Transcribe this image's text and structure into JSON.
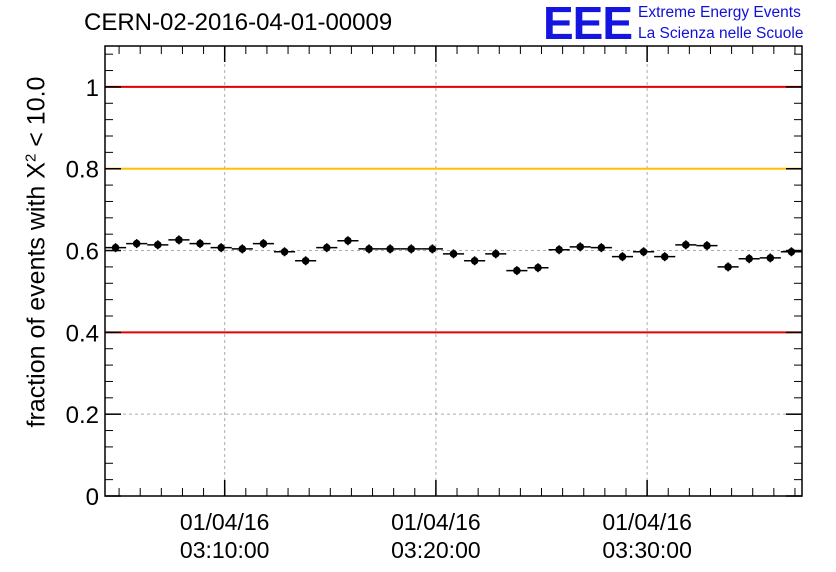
{
  "header": {
    "title": "CERN-02-2016-04-01-00009"
  },
  "logo": {
    "mark": "EEE",
    "line1": "Extreme Energy Events",
    "line2": "La Scienza nelle Scuole",
    "color": "#1515e0"
  },
  "chart_data": {
    "type": "scatter",
    "title": "CERN-02-2016-04-01-00009",
    "ylabel": {
      "prefix": "fraction of events with ",
      "symbol": "X",
      "exponent": "2",
      "suffix": " < 10.0"
    },
    "ylim": [
      0,
      1.1
    ],
    "xlim": [
      "03:04:20",
      "03:37:20"
    ],
    "yticks": [
      "0",
      "0.2",
      "0.4",
      "0.6",
      "0.8",
      "1"
    ],
    "xticks": [
      {
        "time": "03:10:00",
        "date": "01/04/16"
      },
      {
        "time": "03:20:00",
        "date": "01/04/16"
      },
      {
        "time": "03:30:00",
        "date": "01/04/16"
      }
    ],
    "grid": true,
    "reference_lines": [
      {
        "y": 1.0,
        "color": "#e00000"
      },
      {
        "y": 0.8,
        "color": "#ffc000"
      },
      {
        "y": 0.4,
        "color": "#e00000"
      }
    ],
    "bin_width_minutes": 1,
    "series": [
      {
        "x": [
          "03:04:50",
          "03:05:50",
          "03:06:50",
          "03:07:50",
          "03:08:50",
          "03:09:50",
          "03:10:50",
          "03:11:50",
          "03:12:50",
          "03:13:50",
          "03:14:50",
          "03:15:50",
          "03:16:50",
          "03:17:50",
          "03:18:50",
          "03:19:50",
          "03:20:50",
          "03:21:50",
          "03:22:50",
          "03:23:50",
          "03:24:50",
          "03:25:50",
          "03:26:50",
          "03:27:50",
          "03:28:50",
          "03:29:50",
          "03:30:50",
          "03:31:50",
          "03:32:50",
          "03:33:50",
          "03:34:50",
          "03:35:50",
          "03:36:50"
        ],
        "y": [
          0.607,
          0.617,
          0.614,
          0.626,
          0.617,
          0.607,
          0.604,
          0.617,
          0.597,
          0.575,
          0.607,
          0.624,
          0.604,
          0.604,
          0.604,
          0.604,
          0.592,
          0.575,
          0.592,
          0.551,
          0.558,
          0.602,
          0.609,
          0.607,
          0.585,
          0.597,
          0.585,
          0.614,
          0.612,
          0.56,
          0.58,
          0.582,
          0.597
        ],
        "err": [
          0.011,
          0.011,
          0.011,
          0.011,
          0.011,
          0.011,
          0.011,
          0.011,
          0.011,
          0.011,
          0.011,
          0.011,
          0.011,
          0.011,
          0.011,
          0.011,
          0.011,
          0.011,
          0.011,
          0.011,
          0.011,
          0.011,
          0.011,
          0.011,
          0.011,
          0.011,
          0.011,
          0.011,
          0.011,
          0.011,
          0.011,
          0.011,
          0.011
        ]
      }
    ]
  }
}
